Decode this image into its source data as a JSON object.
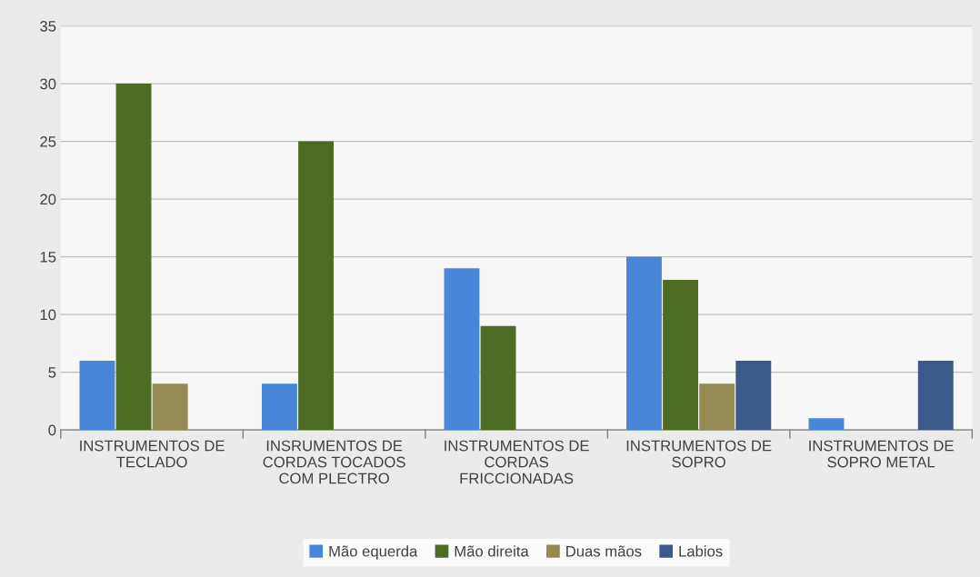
{
  "chart_data": {
    "type": "bar",
    "categories": [
      "INSTRUMENTOS DE\nTECLADO",
      "INSRUMENTOS DE\nCORDAS TOCADOS\nCOM PLECTRO",
      "INSTRUMENTOS DE\nCORDAS\nFRICCIONADAS",
      "INSTRUMENTOS DE\nSOPRO",
      "INSTRUMENTOS DE\nSOPRO METAL"
    ],
    "series": [
      {
        "name": "Mão equerda",
        "color": "#4a86d8",
        "values": [
          6,
          4,
          14,
          15,
          1
        ]
      },
      {
        "name": "Mão direita",
        "color": "#4e6b23",
        "values": [
          30,
          25,
          9,
          13,
          0
        ]
      },
      {
        "name": "Duas mãos",
        "color": "#948a54",
        "values": [
          4,
          0,
          0,
          4,
          0
        ]
      },
      {
        "name": "Labios",
        "color": "#3b5a8a",
        "values": [
          0,
          0,
          0,
          6,
          6
        ]
      }
    ],
    "ylim": [
      0,
      35
    ],
    "yticks": [
      0,
      5,
      10,
      15,
      20,
      25,
      30,
      35
    ],
    "grid": "y",
    "legend": "bottom"
  }
}
